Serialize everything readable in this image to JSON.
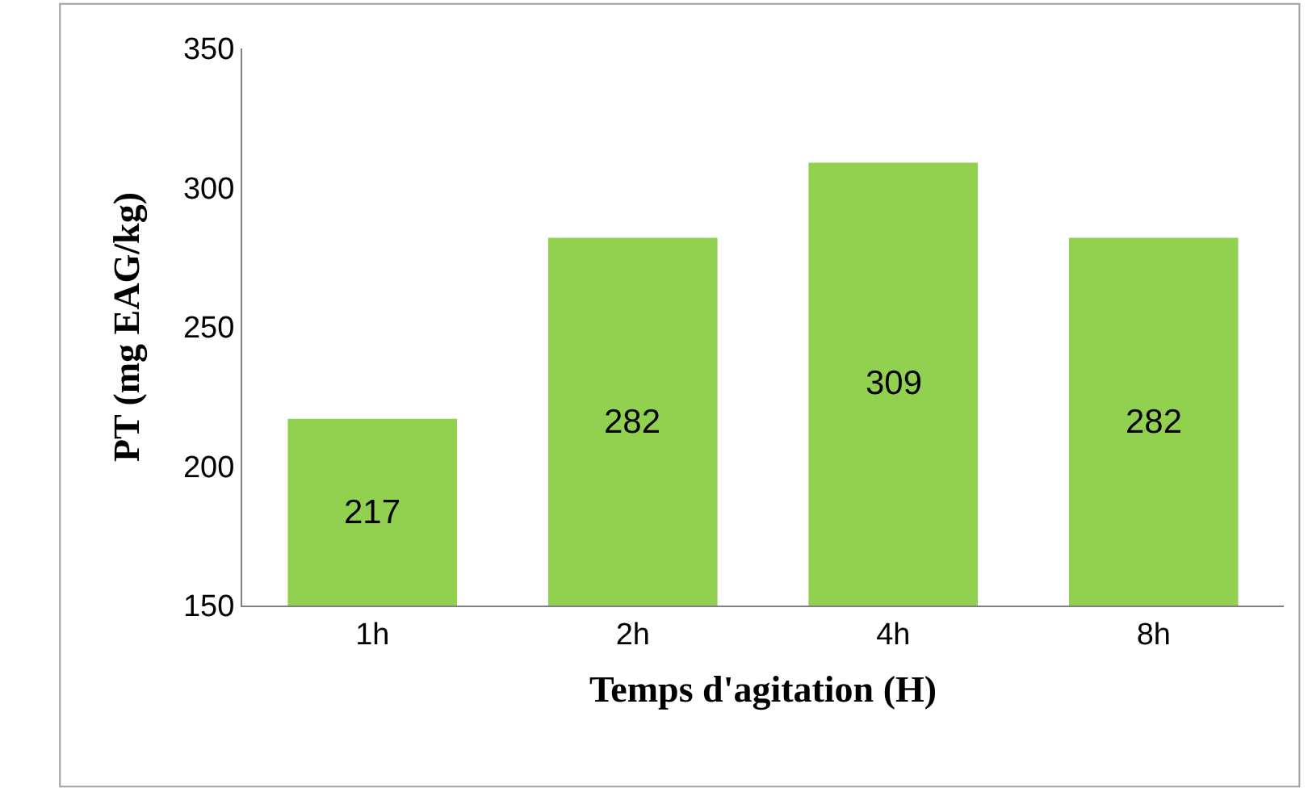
{
  "chart_data": {
    "type": "bar",
    "xlabel": "Temps d'agitation (H)",
    "ylabel": "PT (mg EAG/kg)",
    "categories": [
      "1h",
      "2h",
      "4h",
      "8h"
    ],
    "values": [
      217,
      282,
      309,
      282
    ],
    "color": "#92d050",
    "ylim": [
      150,
      350
    ],
    "yticks": [
      150,
      200,
      250,
      300,
      350
    ],
    "data_labels": true
  }
}
